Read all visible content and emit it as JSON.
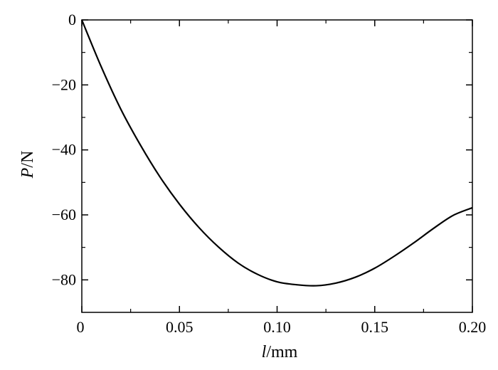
{
  "chart_data": {
    "type": "line",
    "title": "",
    "xlabel": {
      "symbol": "l",
      "unit": "/mm"
    },
    "ylabel": {
      "symbol": "P",
      "unit": "/N"
    },
    "xlim": [
      0,
      0.2
    ],
    "ylim": [
      -90,
      0
    ],
    "grid": false,
    "legend": "none",
    "x_ticks": [
      0,
      0.05,
      0.1,
      0.15,
      0.2
    ],
    "x_tick_labels": [
      "0",
      "0.05",
      "0.10",
      "0.15",
      "0.20"
    ],
    "y_ticks": [
      0,
      -20,
      -40,
      -60,
      -80
    ],
    "y_tick_labels": [
      "0",
      "−20",
      "−40",
      "−60",
      "−80"
    ],
    "series": [
      {
        "color": "#000000",
        "x": [
          0,
          0.01,
          0.02,
          0.03,
          0.04,
          0.05,
          0.06,
          0.07,
          0.08,
          0.09,
          0.1,
          0.11,
          0.12,
          0.13,
          0.14,
          0.15,
          0.16,
          0.17,
          0.18,
          0.19,
          0.2
        ],
        "y": [
          0,
          -14.5,
          -27.5,
          -38.5,
          -48.3,
          -56.7,
          -63.9,
          -69.9,
          -74.8,
          -78.3,
          -80.6,
          -81.5,
          -81.8,
          -81.0,
          -79.2,
          -76.4,
          -72.7,
          -68.6,
          -64.2,
          -60.2,
          -57.8
        ]
      }
    ]
  }
}
